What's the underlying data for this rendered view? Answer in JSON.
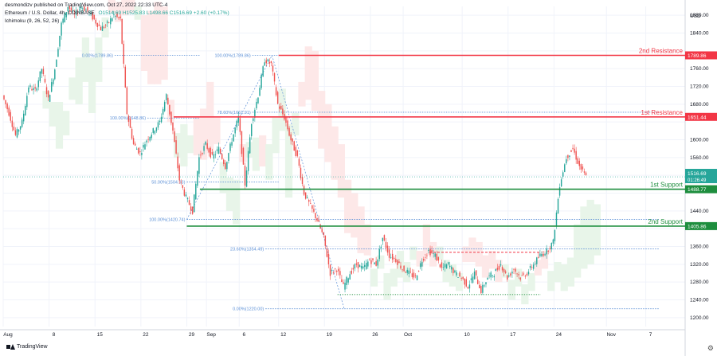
{
  "header": {
    "line1": "desmondizv published on TradingView.com, Oct 27, 2022 22:33 UTC-4",
    "symbol": "Ethereum / U.S. Dollar, 4h, COINBASE",
    "ohlc": "O1514.69 H1525.83 L1498.66 C1516.69 +2.60 (+0.17%)",
    "indicator": "Ichimoku (9, 26, 52, 26)"
  },
  "footer": {
    "brand": "TradingView"
  },
  "chart_data": {
    "type": "candlestick",
    "currency_label": "USD",
    "ylim": [
      1180,
      1900
    ],
    "y_ticks": [
      1200,
      1240,
      1280,
      1320,
      1360,
      1400,
      1440,
      1480,
      1520,
      1560,
      1600,
      1640,
      1680,
      1720,
      1760,
      1800,
      1840,
      1880
    ],
    "x_ticks": [
      {
        "label": "Aug",
        "x": 0
      },
      {
        "label": "8",
        "x": 7
      },
      {
        "label": "15",
        "x": 14
      },
      {
        "label": "22",
        "x": 21
      },
      {
        "label": "29",
        "x": 28
      },
      {
        "label": "Sep",
        "x": 31
      },
      {
        "label": "6",
        "x": 36
      },
      {
        "label": "12",
        "x": 42
      },
      {
        "label": "19",
        "x": 49
      },
      {
        "label": "26",
        "x": 56
      },
      {
        "label": "Oct",
        "x": 61
      },
      {
        "label": "10",
        "x": 70
      },
      {
        "label": "17",
        "x": 77
      },
      {
        "label": "24",
        "x": 84
      },
      {
        "label": "Nov",
        "x": 92
      },
      {
        "label": "7",
        "x": 98
      }
    ],
    "x_max": 104,
    "price_path": [
      [
        0,
        1700
      ],
      [
        1,
        1660
      ],
      [
        2,
        1610
      ],
      [
        3,
        1640
      ],
      [
        4,
        1720
      ],
      [
        5,
        1710
      ],
      [
        6,
        1760
      ],
      [
        7,
        1690
      ],
      [
        8,
        1760
      ],
      [
        9,
        1860
      ],
      [
        10,
        1900
      ],
      [
        11,
        1880
      ],
      [
        12,
        1900
      ],
      [
        13,
        1890
      ],
      [
        14,
        1870
      ],
      [
        15,
        1850
      ],
      [
        16,
        1860
      ],
      [
        17,
        1880
      ],
      [
        18,
        1870
      ],
      [
        19,
        1660
      ],
      [
        20,
        1590
      ],
      [
        21,
        1570
      ],
      [
        22,
        1600
      ],
      [
        23,
        1620
      ],
      [
        24,
        1640
      ],
      [
        25,
        1700
      ],
      [
        26,
        1620
      ],
      [
        27,
        1510
      ],
      [
        28,
        1470
      ],
      [
        29,
        1440
      ],
      [
        30,
        1560
      ],
      [
        31,
        1590
      ],
      [
        32,
        1560
      ],
      [
        33,
        1580
      ],
      [
        34,
        1540
      ],
      [
        35,
        1600
      ],
      [
        36,
        1650
      ],
      [
        37,
        1500
      ],
      [
        38,
        1640
      ],
      [
        39,
        1700
      ],
      [
        40,
        1780
      ],
      [
        41,
        1770
      ],
      [
        42,
        1680
      ],
      [
        43,
        1650
      ],
      [
        44,
        1600
      ],
      [
        45,
        1560
      ],
      [
        46,
        1480
      ],
      [
        47,
        1450
      ],
      [
        48,
        1420
      ],
      [
        49,
        1380
      ],
      [
        50,
        1300
      ],
      [
        51,
        1310
      ],
      [
        52,
        1270
      ],
      [
        53,
        1300
      ],
      [
        54,
        1320
      ],
      [
        55,
        1310
      ],
      [
        56,
        1330
      ],
      [
        57,
        1320
      ],
      [
        58,
        1380
      ],
      [
        59,
        1340
      ],
      [
        60,
        1330
      ],
      [
        61,
        1310
      ],
      [
        62,
        1300
      ],
      [
        63,
        1290
      ],
      [
        64,
        1330
      ],
      [
        65,
        1350
      ],
      [
        66,
        1340
      ],
      [
        67,
        1310
      ],
      [
        68,
        1320
      ],
      [
        69,
        1300
      ],
      [
        70,
        1290
      ],
      [
        71,
        1270
      ],
      [
        72,
        1300
      ],
      [
        73,
        1260
      ],
      [
        74,
        1290
      ],
      [
        75,
        1300
      ],
      [
        76,
        1320
      ],
      [
        77,
        1290
      ],
      [
        78,
        1310
      ],
      [
        79,
        1290
      ],
      [
        80,
        1300
      ],
      [
        81,
        1320
      ],
      [
        82,
        1340
      ],
      [
        83,
        1350
      ],
      [
        84,
        1370
      ],
      [
        85,
        1500
      ],
      [
        86,
        1560
      ],
      [
        87,
        1580
      ],
      [
        88,
        1540
      ],
      [
        89,
        1516.69
      ]
    ],
    "current_price": {
      "value": 1516.69,
      "label": "1516.69",
      "countdown": "01:26:49"
    },
    "levels": [
      {
        "name": "2nd Resistance",
        "value": 1789.86,
        "label": "1789.86",
        "color": "#f23645"
      },
      {
        "name": "1st Resistance",
        "value": 1651.44,
        "label": "1651.44",
        "color": "#f23645"
      },
      {
        "name": "1st Support",
        "value": 1488.77,
        "label": "1488.77",
        "color": "#1e8e3e"
      },
      {
        "name": "2nd Support",
        "value": 1405.86,
        "label": "1405.86",
        "color": "#1e8e3e"
      }
    ],
    "fibonacci": [
      {
        "label": "0.00%(1789.86)",
        "value": 1789.86,
        "x0": 17,
        "x1": 30
      },
      {
        "label": "100.00%(1789.86)",
        "value": 1789.86,
        "x0": 38,
        "x1": 42
      },
      {
        "label": "78.60%(1661.91)",
        "value": 1661.91,
        "x0": 38,
        "x1": 100
      },
      {
        "label": "100.00%(1648.86)",
        "value": 1648.86,
        "x0": 22,
        "x1": 30
      },
      {
        "label": "50.00%(1504.93)",
        "value": 1504.93,
        "x0": 28,
        "x1": 42
      },
      {
        "label": "100.00%(1420.74)",
        "value": 1420.74,
        "x0": 28,
        "x1": 100
      },
      {
        "label": "23.60%(1354.49)",
        "value": 1354.49,
        "x0": 40,
        "x1": 100
      },
      {
        "label": "0.00%(1220.00)",
        "value": 1220.0,
        "x0": 40,
        "x1": 100
      }
    ],
    "dashed_resistance": {
      "value": 1347,
      "x0": 65,
      "x1": 82,
      "color": "#f23645"
    },
    "dotted_support": {
      "value": 1252,
      "x0": 51,
      "x1": 82,
      "color": "#1e8e3e"
    },
    "colors": {
      "up": "#26a69a",
      "down": "#ef5350",
      "grid": "#f0f3fa",
      "fib": "#5b8fd6",
      "cloud_up": "#e8f5e9",
      "cloud_down": "#fde8e8"
    }
  }
}
